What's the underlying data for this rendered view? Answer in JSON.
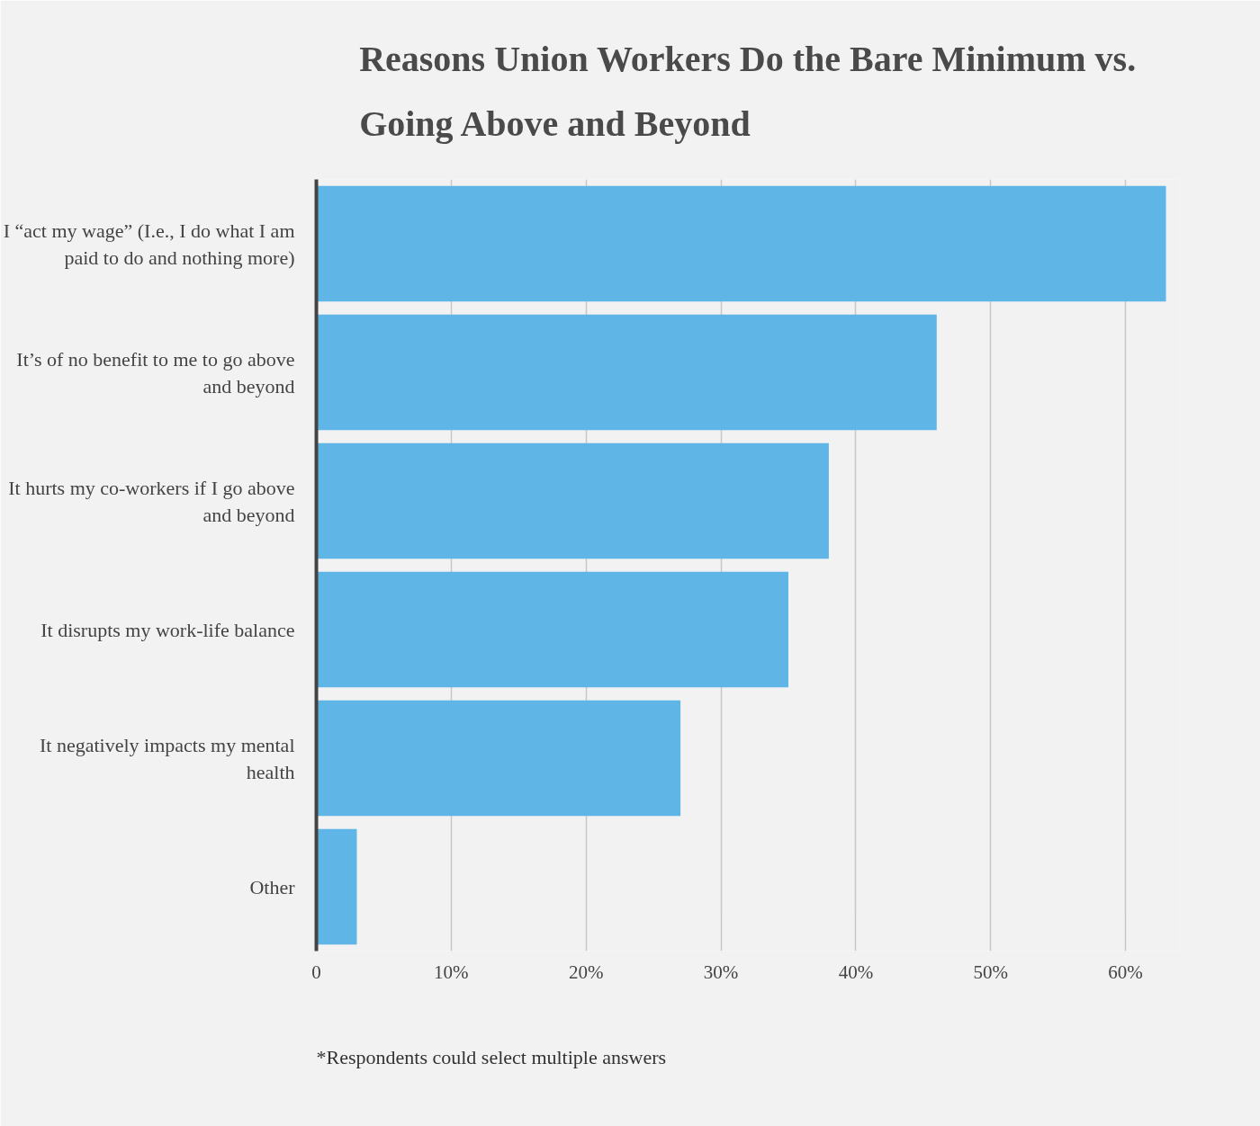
{
  "chart_data": {
    "type": "bar",
    "orientation": "horizontal",
    "title": "Reasons Union Workers Do the Bare Minimum vs. Going Above and Beyond",
    "categories": [
      "I “act my wage” (I.e., I do what I am paid to do and nothing more)",
      "It’s of no benefit to me to go above and beyond",
      "It hurts my co-workers if I go above and beyond",
      "It disrupts my work-life balance",
      "It negatively impacts my mental health",
      "Other"
    ],
    "values": [
      63,
      46,
      38,
      35,
      27,
      3
    ],
    "color": "#5fb5e5",
    "xlim": [
      0,
      64
    ],
    "xticks": [
      0,
      {
        "value": 10,
        "label": "10%"
      },
      {
        "value": 20,
        "label": "20%"
      },
      {
        "value": 30,
        "label": "30%"
      },
      {
        "value": 40,
        "label": "40%"
      },
      {
        "value": 50,
        "label": "50%"
      },
      {
        "value": 60,
        "label": "60%"
      }
    ],
    "grid": "x",
    "annotations": [
      "*Respondents could select multiple answers"
    ]
  }
}
